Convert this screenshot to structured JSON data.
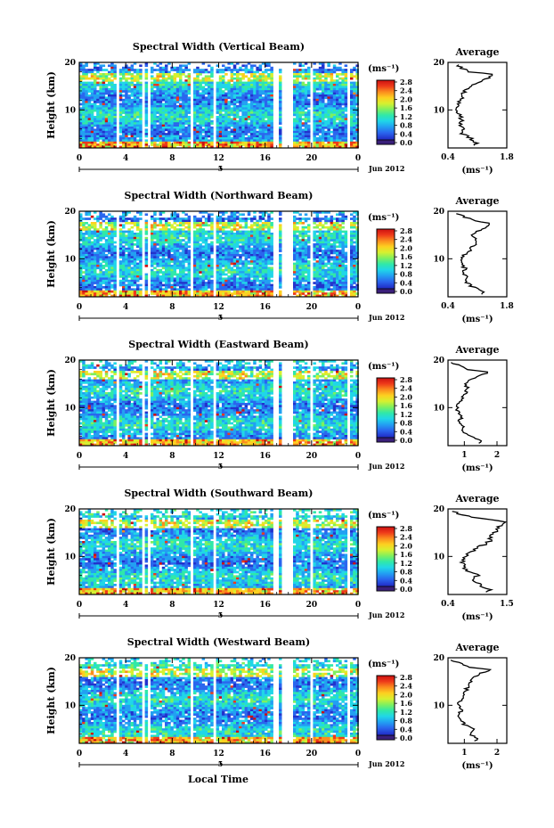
{
  "figure": {
    "date_label": "Jun 2012",
    "x_axis_label": "Local Time",
    "date_tick": "5",
    "average_title": "Average",
    "colorbar_unit": "(ms⁻¹)",
    "colorbar_ticks": [
      "0.0",
      "0.4",
      "0.8",
      "1.2",
      "1.6",
      "2.0",
      "2.4",
      "2.8"
    ],
    "colorbar_colors": [
      "#3a1f7a",
      "#2233cc",
      "#2a66ee",
      "#22a0f2",
      "#20d6e8",
      "#30e8a8",
      "#7ef060",
      "#d6f030",
      "#fdd020",
      "#fb8c1e",
      "#ee3a1a",
      "#cc1111"
    ],
    "data_gaps": [
      [
        3.2,
        3.5
      ],
      [
        5.3,
        5.6
      ],
      [
        5.95,
        6.25
      ],
      [
        9.5,
        9.8
      ],
      [
        11.5,
        11.8
      ],
      [
        16.8,
        17.15
      ],
      [
        17.3,
        18.4
      ],
      [
        19.8,
        20.0
      ],
      [
        23.0,
        23.2
      ]
    ]
  },
  "chart_data": [
    {
      "type": "heatmap",
      "title": "Spectral Width (Vertical Beam)",
      "xlabel": "",
      "ylabel": "Height (km)",
      "xticks": [
        "0",
        "4",
        "8",
        "12",
        "16",
        "20",
        "0"
      ],
      "xlim": [
        0,
        24
      ],
      "yticks": [
        "10",
        "20"
      ],
      "ylim": [
        2,
        20
      ],
      "colorbar_label": "(ms⁻¹)",
      "colorbar_range": [
        0.0,
        2.8
      ],
      "profile": {
        "title": "Average",
        "xlabel": "(ms⁻¹)",
        "xticks": [
          "0.4",
          "1.8"
        ],
        "xlim": [
          0.4,
          1.8
        ],
        "height": [
          2.5,
          3,
          4,
          5,
          6,
          7,
          8,
          9,
          10,
          11,
          12,
          13,
          14,
          15,
          16,
          17,
          17.5,
          18,
          19,
          19.5
        ],
        "value": [
          1.05,
          1.1,
          0.95,
          0.75,
          0.8,
          0.7,
          0.72,
          0.65,
          0.6,
          0.62,
          0.7,
          0.75,
          0.8,
          0.95,
          1.2,
          1.4,
          1.45,
          0.9,
          0.7,
          0.6
        ]
      }
    },
    {
      "type": "heatmap",
      "title": "Spectral Width (Northward Beam)",
      "xlabel": "",
      "ylabel": "Height (km)",
      "xticks": [
        "0",
        "4",
        "8",
        "12",
        "16",
        "20",
        "0"
      ],
      "xlim": [
        0,
        24
      ],
      "yticks": [
        "10",
        "20"
      ],
      "ylim": [
        2,
        20
      ],
      "colorbar_label": "(ms⁻¹)",
      "colorbar_range": [
        0.0,
        2.8
      ],
      "profile": {
        "title": "Average",
        "xlabel": "(ms⁻¹)",
        "xticks": [
          "0.4",
          "1.8"
        ],
        "xlim": [
          0.4,
          1.8
        ],
        "height": [
          2.5,
          3,
          4,
          5,
          6,
          7,
          8,
          9,
          10,
          11,
          12,
          13,
          14,
          15,
          16,
          17,
          17.5,
          18,
          19,
          19.5
        ],
        "value": [
          1.2,
          1.3,
          1.0,
          0.85,
          0.9,
          0.78,
          0.8,
          0.7,
          0.72,
          0.8,
          0.95,
          1.05,
          1.1,
          1.0,
          1.15,
          1.35,
          1.4,
          1.0,
          0.75,
          0.6
        ]
      }
    },
    {
      "type": "heatmap",
      "title": "Spectral Width (Eastward Beam)",
      "xlabel": "",
      "ylabel": "Height (km)",
      "xticks": [
        "0",
        "4",
        "8",
        "12",
        "16",
        "20",
        "0"
      ],
      "xlim": [
        0,
        24
      ],
      "yticks": [
        "10",
        "20"
      ],
      "ylim": [
        2,
        20
      ],
      "colorbar_label": "(ms⁻¹)",
      "colorbar_range": [
        0.0,
        2.8
      ],
      "profile": {
        "title": "Average",
        "xlabel": "(ms⁻¹)",
        "xticks": [
          "1",
          "2"
        ],
        "xlim": [
          0.5,
          2.3
        ],
        "height": [
          2.5,
          3,
          4,
          5,
          6,
          7,
          8,
          9,
          10,
          11,
          12,
          13,
          14,
          15,
          16,
          17,
          17.5,
          18,
          19,
          19.5
        ],
        "value": [
          1.4,
          1.5,
          1.2,
          0.95,
          1.0,
          0.85,
          0.9,
          0.8,
          0.78,
          0.82,
          0.95,
          1.05,
          1.1,
          1.05,
          1.2,
          1.6,
          1.75,
          1.1,
          0.8,
          0.6
        ]
      }
    },
    {
      "type": "heatmap",
      "title": "Spectral Width (Southward Beam)",
      "xlabel": "",
      "ylabel": "Height (km)",
      "xticks": [
        "0",
        "4",
        "8",
        "12",
        "16",
        "20",
        "0"
      ],
      "xlim": [
        0,
        24
      ],
      "yticks": [
        "10",
        "20"
      ],
      "ylim": [
        2,
        20
      ],
      "colorbar_label": "(ms⁻¹)",
      "colorbar_range": [
        0.0,
        2.8
      ],
      "profile": {
        "title": "Average",
        "xlabel": "(ms⁻¹)",
        "xticks": [
          "0.4",
          "1.5"
        ],
        "xlim": [
          0.4,
          1.5
        ],
        "height": [
          2.5,
          3,
          4,
          5,
          6,
          7,
          8,
          9,
          10,
          11,
          12,
          13,
          14,
          15,
          16,
          17,
          17.5,
          18,
          19,
          19.5
        ],
        "value": [
          1.15,
          1.2,
          1.0,
          0.9,
          0.95,
          0.75,
          0.7,
          0.65,
          0.7,
          0.8,
          1.0,
          1.15,
          1.2,
          1.25,
          1.35,
          1.45,
          1.4,
          1.0,
          0.6,
          0.45
        ]
      }
    },
    {
      "type": "heatmap",
      "title": "Spectral Width (Westward Beam)",
      "xlabel": "Local Time",
      "ylabel": "Height (km)",
      "xticks": [
        "0",
        "4",
        "8",
        "12",
        "16",
        "20",
        "0"
      ],
      "xlim": [
        0,
        24
      ],
      "yticks": [
        "10",
        "20"
      ],
      "ylim": [
        2,
        20
      ],
      "colorbar_label": "(ms⁻¹)",
      "colorbar_range": [
        0.0,
        2.8
      ],
      "profile": {
        "title": "Average",
        "xlabel": "(ms⁻¹)",
        "xticks": [
          "1",
          "2"
        ],
        "xlim": [
          0.5,
          2.3
        ],
        "height": [
          2.5,
          3,
          4,
          5,
          6,
          7,
          8,
          9,
          10,
          11,
          12,
          13,
          14,
          15,
          16,
          17,
          17.5,
          18,
          19,
          19.5
        ],
        "value": [
          1.35,
          1.45,
          1.15,
          1.3,
          1.0,
          0.9,
          0.85,
          0.9,
          0.8,
          0.9,
          1.0,
          1.05,
          1.1,
          1.2,
          1.3,
          1.6,
          1.8,
          1.2,
          0.8,
          0.55
        ]
      }
    }
  ]
}
